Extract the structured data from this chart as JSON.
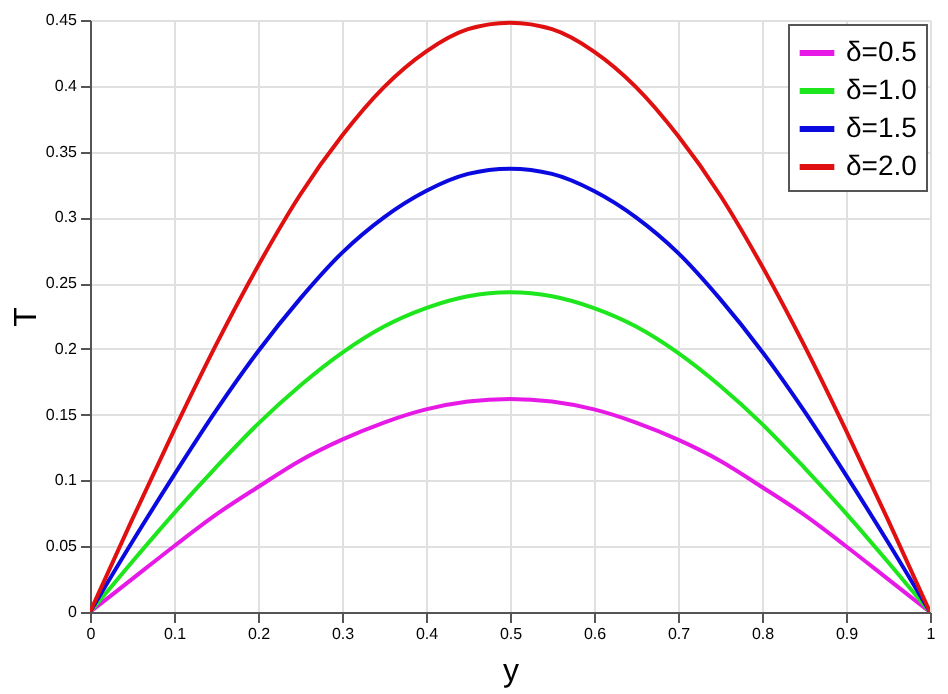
{
  "chart_data": {
    "type": "line",
    "xlabel": "y",
    "ylabel": "T",
    "x": [
      0,
      0.05,
      0.1,
      0.15,
      0.2,
      0.25,
      0.3,
      0.35,
      0.4,
      0.45,
      0.5,
      0.55,
      0.6,
      0.65,
      0.7,
      0.75,
      0.8,
      0.85,
      0.9,
      0.95,
      1
    ],
    "series": [
      {
        "name": "δ=0.5",
        "color": "#e619e6",
        "values": [
          0,
          0.025,
          0.05,
          0.074,
          0.095,
          0.115,
          0.131,
          0.144,
          0.154,
          0.16,
          0.162,
          0.16,
          0.154,
          0.144,
          0.131,
          0.115,
          0.095,
          0.074,
          0.05,
          0.025,
          0
        ]
      },
      {
        "name": "δ=1.0",
        "color": "#1de61d",
        "values": [
          0,
          0.038,
          0.075,
          0.11,
          0.143,
          0.172,
          0.197,
          0.217,
          0.231,
          0.24,
          0.243,
          0.24,
          0.231,
          0.217,
          0.197,
          0.172,
          0.143,
          0.11,
          0.075,
          0.038,
          0
        ]
      },
      {
        "name": "δ=1.5",
        "color": "#0a0ae0",
        "values": [
          0,
          0.053,
          0.104,
          0.153,
          0.198,
          0.238,
          0.273,
          0.3,
          0.32,
          0.333,
          0.337,
          0.333,
          0.32,
          0.3,
          0.273,
          0.238,
          0.198,
          0.153,
          0.104,
          0.053,
          0
        ]
      },
      {
        "name": "δ=2.0",
        "color": "#e01010",
        "values": [
          0,
          0.07,
          0.138,
          0.203,
          0.263,
          0.317,
          0.362,
          0.399,
          0.426,
          0.443,
          0.448,
          0.443,
          0.426,
          0.399,
          0.362,
          0.317,
          0.263,
          0.203,
          0.138,
          0.07,
          0
        ]
      }
    ],
    "xlim": [
      0,
      1
    ],
    "xticks": [
      0,
      0.1,
      0.2,
      0.3,
      0.4,
      0.5,
      0.6,
      0.7,
      0.8,
      0.9,
      1
    ],
    "ylim": [
      0,
      0.45
    ],
    "yticks": [
      0,
      0.05,
      0.1,
      0.15,
      0.2,
      0.25,
      0.3,
      0.35,
      0.4,
      0.45
    ],
    "grid": true,
    "legend": "top right",
    "marker": "none",
    "line_style": "solid"
  }
}
